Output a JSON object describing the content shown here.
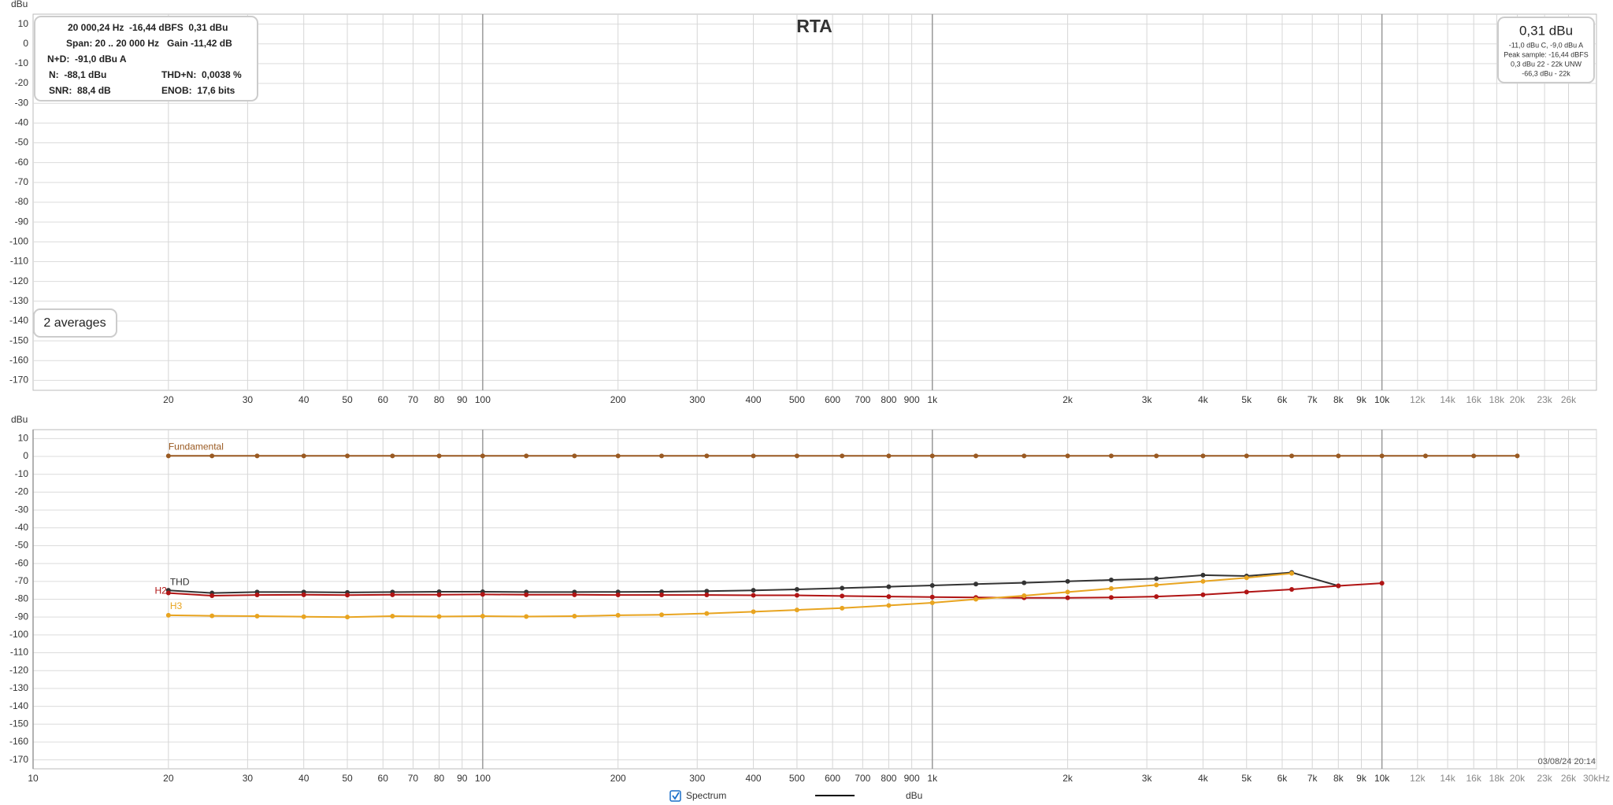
{
  "chart_data": [
    {
      "type": "line",
      "title": "RTA",
      "y_label": "dBu",
      "xscale": "log",
      "xlim": [
        10,
        30000
      ],
      "ylim": [
        -175,
        15
      ],
      "grid": true,
      "xticks": [
        20,
        30,
        40,
        50,
        60,
        70,
        80,
        90,
        100,
        200,
        300,
        400,
        500,
        600,
        700,
        800,
        900,
        {
          "value": 1000,
          "label": "1k"
        },
        {
          "value": 2000,
          "label": "2k"
        },
        {
          "value": 3000,
          "label": "3k"
        },
        {
          "value": 4000,
          "label": "4k"
        },
        {
          "value": 5000,
          "label": "5k"
        },
        {
          "value": 6000,
          "label": "6k"
        },
        {
          "value": 7000,
          "label": "7k"
        },
        {
          "value": 8000,
          "label": "8k"
        },
        {
          "value": 9000,
          "label": "9k"
        },
        {
          "value": 10000,
          "label": "10k"
        },
        {
          "value": 12000,
          "label": "12k"
        },
        {
          "value": 14000,
          "label": "14k"
        },
        {
          "value": 16000,
          "label": "16k"
        },
        {
          "value": 18000,
          "label": "18k"
        },
        {
          "value": 20000,
          "label": "20k"
        },
        {
          "value": 23000,
          "label": "23k"
        },
        {
          "value": 26000,
          "label": "26k"
        }
      ],
      "yticks": [
        10,
        0,
        -10,
        -20,
        -30,
        -40,
        -50,
        -60,
        -70,
        -80,
        -90,
        -100,
        -110,
        -120,
        -130,
        -140,
        -150,
        -160,
        -170
      ]
    },
    {
      "type": "line",
      "y_label": "dBu",
      "xscale": "log",
      "xlim": [
        10,
        30000
      ],
      "ylim": [
        -175,
        15
      ],
      "grid": true,
      "xticks": [
        10,
        20,
        30,
        40,
        50,
        60,
        70,
        80,
        90,
        100,
        200,
        300,
        400,
        500,
        600,
        700,
        800,
        900,
        {
          "value": 1000,
          "label": "1k"
        },
        {
          "value": 2000,
          "label": "2k"
        },
        {
          "value": 3000,
          "label": "3k"
        },
        {
          "value": 4000,
          "label": "4k"
        },
        {
          "value": 5000,
          "label": "5k"
        },
        {
          "value": 6000,
          "label": "6k"
        },
        {
          "value": 7000,
          "label": "7k"
        },
        {
          "value": 8000,
          "label": "8k"
        },
        {
          "value": 9000,
          "label": "9k"
        },
        {
          "value": 10000,
          "label": "10k"
        },
        {
          "value": 12000,
          "label": "12k"
        },
        {
          "value": 14000,
          "label": "14k"
        },
        {
          "value": 16000,
          "label": "16k"
        },
        {
          "value": 18000,
          "label": "18k"
        },
        {
          "value": 20000,
          "label": "20k"
        },
        {
          "value": 23000,
          "label": "23k"
        },
        {
          "value": 26000,
          "label": "26k"
        },
        {
          "value": 30000,
          "label": "30kHz"
        }
      ],
      "yticks": [
        10,
        0,
        -10,
        -20,
        -30,
        -40,
        -50,
        -60,
        -70,
        -80,
        -90,
        -100,
        -110,
        -120,
        -130,
        -140,
        -150,
        -160,
        -170
      ],
      "x": [
        20,
        25,
        31.5,
        40,
        50,
        63,
        80,
        100,
        125,
        160,
        200,
        250,
        315,
        400,
        500,
        630,
        800,
        1000,
        1250,
        1600,
        2000,
        2500,
        3150,
        4000,
        5000,
        6300,
        8000,
        10000,
        12500,
        16000,
        20000
      ],
      "series": [
        {
          "name": "Fundamental",
          "color": "#9a5a22",
          "values": [
            0.3,
            0.3,
            0.3,
            0.3,
            0.3,
            0.3,
            0.3,
            0.3,
            0.3,
            0.3,
            0.3,
            0.3,
            0.3,
            0.3,
            0.3,
            0.3,
            0.3,
            0.3,
            0.3,
            0.3,
            0.3,
            0.3,
            0.3,
            0.3,
            0.3,
            0.3,
            0.3,
            0.3,
            0.3,
            0.3,
            0.3
          ]
        },
        {
          "name": "THD",
          "color": "#333333",
          "values": [
            -75,
            -76.5,
            -76,
            -76,
            -76.2,
            -76,
            -75.8,
            -75.8,
            -76,
            -76,
            -75.9,
            -75.8,
            -75.5,
            -75,
            -74.5,
            -73.8,
            -73,
            -72.3,
            -71.5,
            -70.8,
            -70,
            -69.2,
            -68.5,
            -66.5,
            -67,
            -65,
            -72.5,
            null,
            null,
            null,
            null
          ]
        },
        {
          "name": "H2",
          "color": "#b01414",
          "values": [
            -76.5,
            -78,
            -77.6,
            -77.5,
            -77.7,
            -77.5,
            -77.5,
            -77.3,
            -77.5,
            -77.5,
            -77.6,
            -77.6,
            -77.6,
            -77.8,
            -77.8,
            -78.2,
            -78.5,
            -78.8,
            -79,
            -79.2,
            -79.2,
            -79,
            -78.5,
            -77.5,
            -76,
            -74.5,
            -72.5,
            -71,
            null,
            null,
            null
          ]
        },
        {
          "name": "H3",
          "color": "#e8a420",
          "values": [
            -89,
            -89.3,
            -89.5,
            -89.8,
            -90,
            -89.5,
            -89.7,
            -89.5,
            -89.7,
            -89.5,
            -89,
            -88.7,
            -88,
            -87,
            -86,
            -85,
            -83.5,
            -82,
            -80,
            -78,
            -76,
            -74,
            -72,
            -70,
            -68,
            -65.5,
            null,
            null,
            null,
            null,
            null
          ]
        }
      ]
    }
  ],
  "info_panel": {
    "rows": [
      [
        "20 000,24 Hz  -16,44 dBFS  0,31 dBu"
      ],
      [
        "Span: 20 .. 20 000 Hz   Gain -11,42 dB"
      ],
      [
        "N+D:  -91,0 dBu A"
      ],
      [
        "N:  -88,1 dBu",
        "THD+N:  0,0038 %"
      ],
      [
        "SNR:  88,4 dB",
        "ENOB:  17,6 bits"
      ]
    ]
  },
  "level_panel": {
    "level": "0,31 dBu",
    "lines": [
      "-11,0 dBu C, -9,0 dBu A",
      "Peak sample: -16,44 dBFS",
      "0,3 dBu 22 - 22k UNW",
      "-66,3 dBu - 22k"
    ]
  },
  "averages": "2 averages",
  "timestamp": "03/08/24 20:14",
  "footer": {
    "checkbox": "Spectrum",
    "unit": "dBu"
  }
}
